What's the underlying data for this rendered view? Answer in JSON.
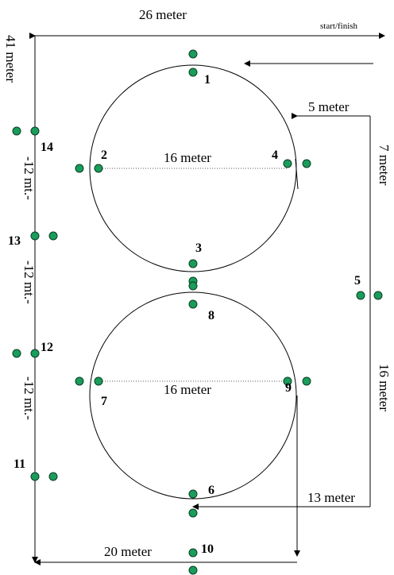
{
  "labels": {
    "top_width": "26 meter",
    "start_finish": "start/finish",
    "left_height": "41 meter",
    "five_meter": "5 meter",
    "seven_meter": "7 meter",
    "circle1_diameter": "16 meter",
    "circle2_diameter": "16 meter",
    "seg1": "-12 mt.-",
    "seg2": "-12 mt.-",
    "seg3": "-12 mt.-",
    "sixteen_meter": "16 meter",
    "thirteen_meter": "13 meter",
    "twenty_meter": "20 meter"
  },
  "cones": {
    "1": "1",
    "2": "2",
    "3": "3",
    "4": "4",
    "5": "5",
    "6": "6",
    "7": "7",
    "8": "8",
    "9": "9",
    "10": "10",
    "11": "11",
    "12": "12",
    "13": "13",
    "14": "14"
  },
  "colors": {
    "cone": "#1a9c5b",
    "line": "#000000"
  }
}
